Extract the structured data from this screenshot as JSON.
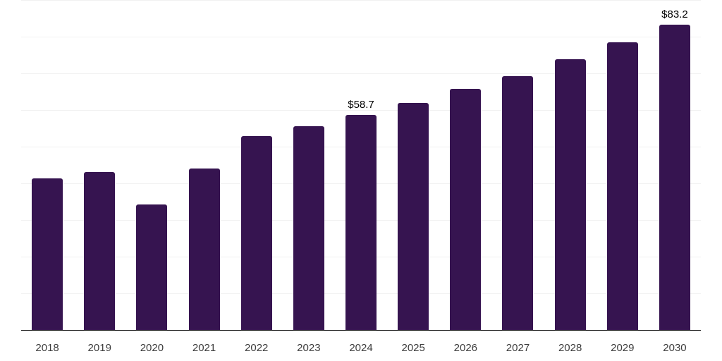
{
  "figure": {
    "background": "#ffffff"
  },
  "chart_data": {
    "type": "bar",
    "title": "",
    "xlabel": "",
    "ylabel": "",
    "categories": [
      "2018",
      "2019",
      "2020",
      "2021",
      "2022",
      "2023",
      "2024",
      "2025",
      "2026",
      "2027",
      "2028",
      "2029",
      "2030"
    ],
    "values": [
      41.3,
      43.1,
      34.2,
      44.1,
      52.9,
      55.5,
      58.7,
      62.0,
      65.7,
      69.3,
      73.9,
      78.4,
      83.2
    ],
    "bar_labels": [
      "",
      "",
      "",
      "",
      "",
      "",
      "$58.7",
      "",
      "",
      "",
      "",
      "",
      "$83.2"
    ],
    "ylim": [
      0,
      90
    ],
    "grid": {
      "visible": true,
      "step": 10,
      "color": "#f1f1f1"
    },
    "legend": "none",
    "y_axis_labels_visible": false,
    "bar_color": "#361450",
    "axis_line_color": "#1a1a1a",
    "data_label_color": "#000000",
    "tick_label_color": "#3d3d3d"
  }
}
